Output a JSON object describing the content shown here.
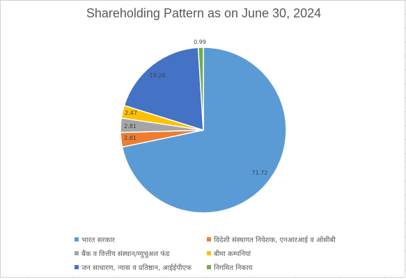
{
  "chart_data": {
    "type": "pie",
    "title": "Shareholding Pattern as on June 30, 2024",
    "slices": [
      {
        "name": "भारत सरकार",
        "value": 71.72,
        "label": "71.72",
        "color": "#5b9bd5"
      },
      {
        "name": "विदेशी संस्थागत निवेशक, एनआरआई व ओसीबी",
        "value": 2.81,
        "label": "2.81",
        "color": "#ed7d31"
      },
      {
        "name": "बैंक व वित्तीय संस्थान/म्युचुअल फंड",
        "value": 2.81,
        "label": "2.81",
        "color": "#a5a5a5"
      },
      {
        "name": "बीमा कम्पनियां",
        "value": 2.47,
        "label": "2.47",
        "color": "#ffc000"
      },
      {
        "name": "जन साधारण, न्यास व प्रतिष्ठान, आईईपीएफ",
        "value": 19.2,
        "label": "19.20",
        "color": "#4472c4"
      },
      {
        "name": "निगमित निकाय",
        "value": 0.99,
        "label": "0.99",
        "color": "#70ad47"
      }
    ],
    "legend_position": "bottom"
  }
}
